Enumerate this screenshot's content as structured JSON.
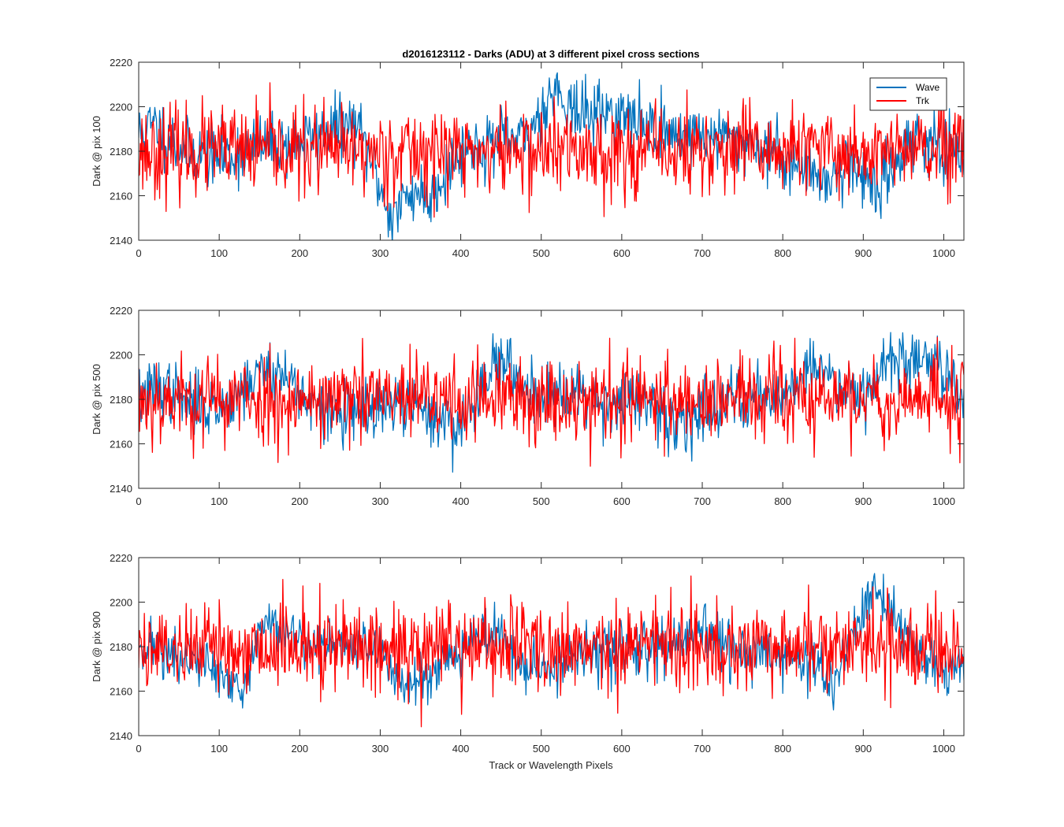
{
  "figure": {
    "title": "d2016123112 - Darks (ADU) at 3 different pixel cross sections",
    "xlabel": "Track or Wavelength Pixels"
  },
  "legend": {
    "entries": [
      "Wave",
      "Trk"
    ],
    "colors": [
      "#0072BD",
      "#FF0000"
    ],
    "placement": "top-right of first subplot"
  },
  "chart_data": [
    {
      "type": "line",
      "ylabel": "Dark @ pix 100",
      "xlim": [
        0,
        1025
      ],
      "ylim": [
        2140,
        2220
      ],
      "xticks": [
        0,
        100,
        200,
        300,
        400,
        500,
        600,
        700,
        800,
        900,
        1000
      ],
      "yticks": [
        2140,
        2160,
        2180,
        2200,
        2220
      ],
      "grid": false,
      "series": [
        {
          "name": "Wave",
          "color": "#0072BD",
          "noise": 7,
          "seed": 11,
          "anchors": [
            [
              0,
              2188
            ],
            [
              20,
              2192
            ],
            [
              40,
              2185
            ],
            [
              60,
              2180
            ],
            [
              100,
              2177
            ],
            [
              150,
              2182
            ],
            [
              200,
              2184
            ],
            [
              240,
              2190
            ],
            [
              270,
              2192
            ],
            [
              290,
              2175
            ],
            [
              305,
              2158
            ],
            [
              315,
              2150
            ],
            [
              330,
              2158
            ],
            [
              345,
              2163
            ],
            [
              360,
              2158
            ],
            [
              380,
              2170
            ],
            [
              400,
              2180
            ],
            [
              440,
              2184
            ],
            [
              480,
              2185
            ],
            [
              500,
              2198
            ],
            [
              515,
              2208
            ],
            [
              530,
              2204
            ],
            [
              545,
              2196
            ],
            [
              580,
              2198
            ],
            [
              620,
              2193
            ],
            [
              660,
              2188
            ],
            [
              700,
              2187
            ],
            [
              750,
              2185
            ],
            [
              800,
              2178
            ],
            [
              830,
              2170
            ],
            [
              860,
              2168
            ],
            [
              880,
              2175
            ],
            [
              905,
              2168
            ],
            [
              920,
              2162
            ],
            [
              950,
              2182
            ],
            [
              970,
              2188
            ],
            [
              1000,
              2178
            ],
            [
              1025,
              2176
            ]
          ]
        },
        {
          "name": "Trk",
          "color": "#FF0000",
          "noise": 10,
          "seed": 23,
          "anchors": [
            [
              0,
              2180
            ],
            [
              1025,
              2180
            ]
          ]
        }
      ]
    },
    {
      "type": "line",
      "ylabel": "Dark @ pix 500",
      "xlim": [
        0,
        1025
      ],
      "ylim": [
        2140,
        2220
      ],
      "xticks": [
        0,
        100,
        200,
        300,
        400,
        500,
        600,
        700,
        800,
        900,
        1000
      ],
      "yticks": [
        2140,
        2160,
        2180,
        2200,
        2220
      ],
      "grid": false,
      "series": [
        {
          "name": "Wave",
          "color": "#0072BD",
          "noise": 7,
          "seed": 37,
          "anchors": [
            [
              0,
              2180
            ],
            [
              30,
              2186
            ],
            [
              60,
              2178
            ],
            [
              100,
              2176
            ],
            [
              160,
              2195
            ],
            [
              190,
              2188
            ],
            [
              220,
              2175
            ],
            [
              280,
              2173
            ],
            [
              330,
              2178
            ],
            [
              380,
              2170
            ],
            [
              400,
              2168
            ],
            [
              420,
              2180
            ],
            [
              440,
              2200
            ],
            [
              460,
              2192
            ],
            [
              500,
              2182
            ],
            [
              540,
              2186
            ],
            [
              580,
              2178
            ],
            [
              620,
              2180
            ],
            [
              660,
              2168
            ],
            [
              700,
              2175
            ],
            [
              750,
              2182
            ],
            [
              800,
              2182
            ],
            [
              830,
              2195
            ],
            [
              860,
              2190
            ],
            [
              900,
              2183
            ],
            [
              930,
              2198
            ],
            [
              960,
              2196
            ],
            [
              990,
              2198
            ],
            [
              1025,
              2182
            ]
          ]
        },
        {
          "name": "Trk",
          "color": "#FF0000",
          "noise": 10,
          "seed": 53,
          "anchors": [
            [
              0,
              2180
            ],
            [
              1025,
              2180
            ]
          ]
        }
      ]
    },
    {
      "type": "line",
      "ylabel": "Dark @ pix 900",
      "xlim": [
        0,
        1025
      ],
      "ylim": [
        2140,
        2220
      ],
      "xticks": [
        0,
        100,
        200,
        300,
        400,
        500,
        600,
        700,
        800,
        900,
        1000
      ],
      "yticks": [
        2140,
        2160,
        2180,
        2200,
        2220
      ],
      "grid": false,
      "series": [
        {
          "name": "Wave",
          "color": "#0072BD",
          "noise": 6,
          "seed": 71,
          "anchors": [
            [
              0,
              2182
            ],
            [
              30,
              2178
            ],
            [
              60,
              2172
            ],
            [
              80,
              2175
            ],
            [
              110,
              2162
            ],
            [
              130,
              2158
            ],
            [
              150,
              2188
            ],
            [
              170,
              2192
            ],
            [
              200,
              2182
            ],
            [
              250,
              2180
            ],
            [
              300,
              2180
            ],
            [
              320,
              2165
            ],
            [
              340,
              2162
            ],
            [
              370,
              2172
            ],
            [
              400,
              2180
            ],
            [
              440,
              2188
            ],
            [
              480,
              2170
            ],
            [
              520,
              2172
            ],
            [
              560,
              2176
            ],
            [
              600,
              2180
            ],
            [
              650,
              2178
            ],
            [
              700,
              2186
            ],
            [
              740,
              2178
            ],
            [
              800,
              2176
            ],
            [
              840,
              2172
            ],
            [
              860,
              2162
            ],
            [
              880,
              2178
            ],
            [
              900,
              2198
            ],
            [
              915,
              2205
            ],
            [
              940,
              2190
            ],
            [
              960,
              2182
            ],
            [
              990,
              2168
            ],
            [
              1025,
              2174
            ]
          ]
        },
        {
          "name": "Trk",
          "color": "#FF0000",
          "noise": 10,
          "seed": 89,
          "anchors": [
            [
              0,
              2180
            ],
            [
              1025,
              2180
            ]
          ]
        }
      ]
    }
  ]
}
